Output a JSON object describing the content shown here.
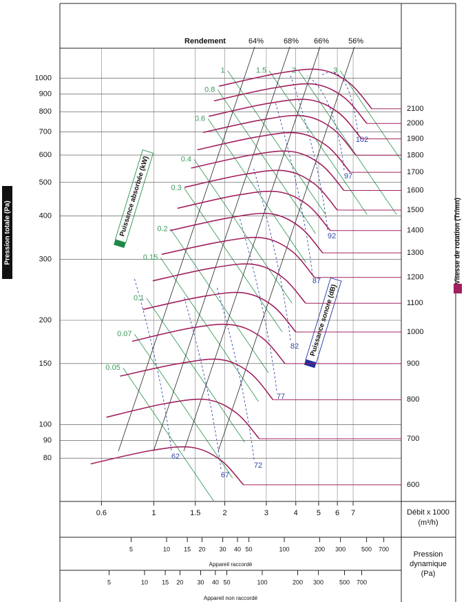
{
  "chart_data": {
    "type": "line",
    "ylabel": "Pression totale (Pa)",
    "y2label": "Vitesse de rotation (Tr/mn)",
    "xlabel": "Débit x 1000",
    "xlabel_unit": "(m³/h)",
    "xscale": "log",
    "yscale": "log",
    "xlim": [
      0.4,
      11.2
    ],
    "ylim": [
      60,
      1220
    ],
    "xticks": [
      0.6,
      1,
      1.5,
      2,
      3,
      4,
      5,
      6,
      7
    ],
    "yticks": [
      80,
      90,
      100,
      150,
      200,
      300,
      400,
      500,
      600,
      700,
      800,
      900,
      1000
    ],
    "grid": true,
    "series": [
      {
        "name": "600",
        "color": "#a0205e",
        "x": [
          0.54,
          0.96,
          1.44,
          1.92,
          2.4
        ],
        "values": [
          77,
          84,
          86,
          79,
          67
        ]
      },
      {
        "name": "700",
        "color": "#a0205e",
        "x": [
          0.63,
          1.12,
          1.68,
          2.24,
          2.8
        ],
        "values": [
          105,
          115,
          118,
          108,
          91
        ]
      },
      {
        "name": "800",
        "color": "#a0205e",
        "x": [
          0.72,
          1.28,
          1.92,
          2.56,
          3.2
        ],
        "values": [
          138,
          150,
          154,
          141,
          118
        ]
      },
      {
        "name": "900",
        "color": "#a0205e",
        "x": [
          0.81,
          1.44,
          2.16,
          2.88,
          3.6
        ],
        "values": [
          174,
          190,
          194,
          178,
          150
        ]
      },
      {
        "name": "1000",
        "color": "#a0205e",
        "x": [
          0.9,
          1.6,
          2.4,
          3.2,
          4
        ],
        "values": [
          215,
          234,
          240,
          220,
          185
        ]
      },
      {
        "name": "1100",
        "color": "#a0205e",
        "x": [
          0.99,
          1.76,
          2.64,
          3.52,
          4.4
        ],
        "values": [
          260,
          283,
          290,
          266,
          224
        ]
      },
      {
        "name": "1200",
        "color": "#a0205e",
        "x": [
          1.08,
          1.92,
          2.88,
          3.84,
          4.8
        ],
        "values": [
          310,
          337,
          346,
          317,
          266
        ]
      },
      {
        "name": "1300",
        "color": "#a0205e",
        "x": [
          1.17,
          2.08,
          3.12,
          4.16,
          5.2
        ],
        "values": [
          363,
          395,
          406,
          372,
          313
        ]
      },
      {
        "name": "1400",
        "color": "#a0205e",
        "x": [
          1.26,
          2.24,
          3.36,
          4.48,
          5.6
        ],
        "values": [
          421,
          459,
          470,
          431,
          363
        ]
      },
      {
        "name": "1500",
        "color": "#a0205e",
        "x": [
          1.35,
          2.4,
          3.6,
          4.8,
          6
        ],
        "values": [
          484,
          527,
          540,
          495,
          416
        ]
      },
      {
        "name": "1600",
        "color": "#a0205e",
        "x": [
          1.44,
          2.56,
          3.84,
          5.12,
          6.4
        ],
        "values": [
          550,
          599,
          614,
          563,
          474
        ]
      },
      {
        "name": "1700",
        "color": "#a0205e",
        "x": [
          1.53,
          2.72,
          4.08,
          5.44,
          6.8
        ],
        "values": [
          621,
          676,
          694,
          636,
          535
        ]
      },
      {
        "name": "1800",
        "color": "#a0205e",
        "x": [
          1.62,
          2.88,
          4.32,
          5.76,
          7.2
        ],
        "values": [
          697,
          758,
          778,
          713,
          599
        ]
      },
      {
        "name": "1900",
        "color": "#a0205e",
        "x": [
          1.71,
          3.04,
          4.56,
          6.08,
          7.6
        ],
        "values": [
          776,
          845,
          866,
          794,
          668
        ]
      },
      {
        "name": "2000",
        "color": "#a0205e",
        "x": [
          1.8,
          3.2,
          4.8,
          6.4,
          8
        ],
        "values": [
          860,
          936,
          960,
          880,
          740
        ]
      },
      {
        "name": "2100",
        "color": "#a0205e",
        "x": [
          1.89,
          3.36,
          5.04,
          6.72,
          8.4
        ],
        "values": [
          948,
          1032,
          1058,
          970,
          816
        ]
      }
    ],
    "power": {
      "label": "Puissance absorbée (kW)",
      "color": "#3a9a5a",
      "values": [
        0.05,
        0.07,
        0.1,
        0.15,
        0.2,
        0.3,
        0.4,
        0.6,
        0.8,
        1,
        1.5,
        2,
        3
      ]
    },
    "sound": {
      "label": "Puissance sonore (dB)",
      "color": "#3344aa",
      "values": [
        62,
        67,
        72,
        77,
        82,
        87,
        92,
        97,
        102
      ]
    },
    "efficiency": {
      "label": "Rendement",
      "values": [
        64,
        68,
        66,
        56
      ],
      "value_labels": [
        "64%",
        "68%",
        "66%",
        "56%"
      ]
    },
    "dynamic_pressure": {
      "label": "Pression dynamique",
      "unit": "(Pa)",
      "scales": [
        {
          "caption": "Appareil raccordé",
          "xlim": [
            1.24,
            986
          ],
          "xticks": [
            5,
            10,
            15,
            20,
            30,
            40,
            50,
            100,
            200,
            300,
            500,
            700
          ]
        },
        {
          "caption": "Appareil non raccordé",
          "xlim": [
            1.91,
            1518
          ],
          "xticks": [
            5,
            10,
            15,
            20,
            30,
            40,
            50,
            100,
            200,
            300,
            500,
            700
          ]
        }
      ]
    }
  }
}
